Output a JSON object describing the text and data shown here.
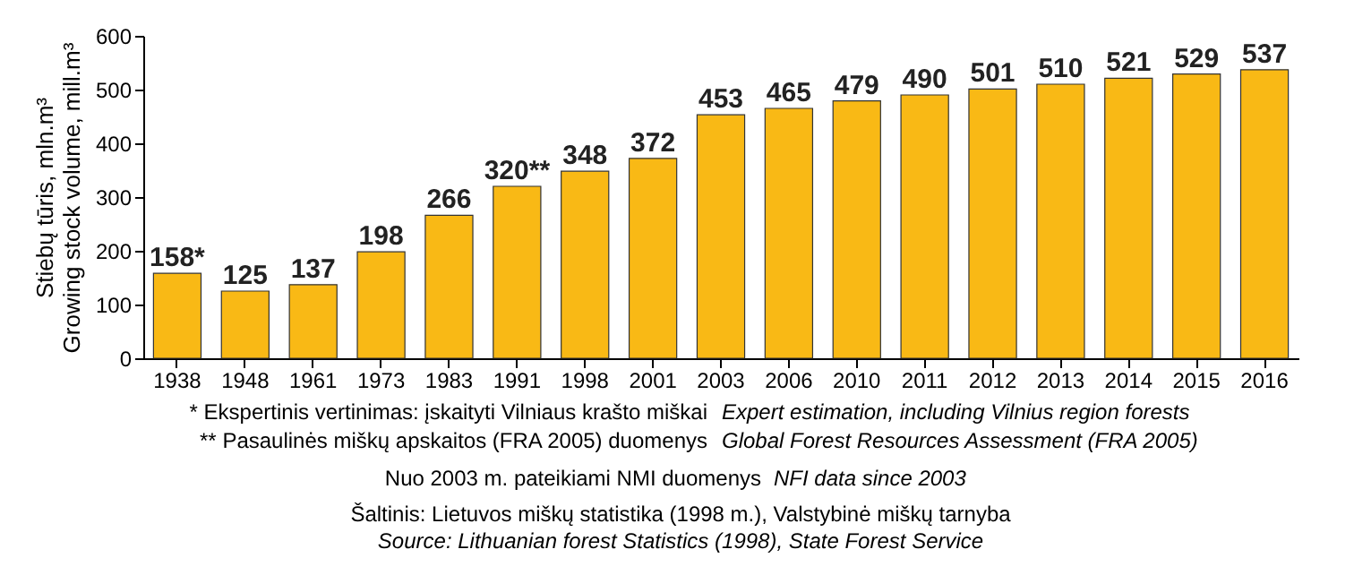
{
  "chart_data": {
    "type": "bar",
    "ylabel": "Stiebų tūris, mln.m³\nGrowing stock volume, mill.m³",
    "categories": [
      "1938",
      "1948",
      "1961",
      "1973",
      "1983",
      "1991",
      "1998",
      "2001",
      "2003",
      "2006",
      "2010",
      "2011",
      "2012",
      "2013",
      "2014",
      "2015",
      "2016"
    ],
    "values": [
      158,
      125,
      137,
      198,
      266,
      320,
      348,
      372,
      453,
      465,
      479,
      490,
      501,
      510,
      521,
      529,
      537
    ],
    "value_labels": [
      "158*",
      "125",
      "137",
      "198",
      "266",
      "320**",
      "348",
      "372",
      "453",
      "465",
      "479",
      "490",
      "501",
      "510",
      "521",
      "529",
      "537"
    ],
    "color": "#f9b915",
    "ylim": [
      0,
      600
    ],
    "yticks": [
      0,
      100,
      200,
      300,
      400,
      500,
      600
    ],
    "grid": false,
    "legend": false,
    "annotations": [
      "* Ekspertinis vertinimas: įskaityti Vilniaus krašto miškai",
      "Expert estimation, including Vilnius region forests",
      "** Pasaulinės miškų apskaitos (FRA 2005) duomenys",
      "Global Forest Resources Assessment (FRA 2005)",
      "Nuo 2003 m. pateikiami NMI duomenys",
      "NFI data since 2003",
      "Šaltinis: Lietuvos miškų statistika (1998 m.), Valstybinė miškų tarnyba",
      "Source: Lithuanian forest Statistics (1998), State Forest Service"
    ]
  }
}
